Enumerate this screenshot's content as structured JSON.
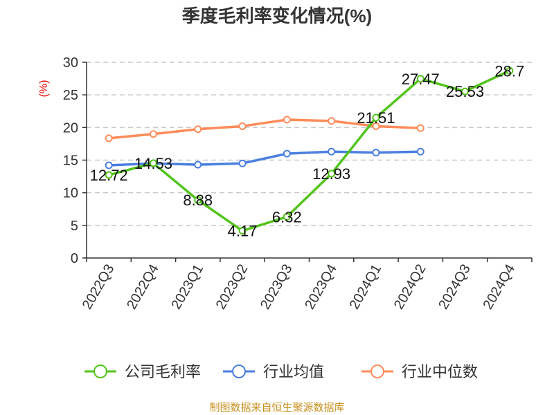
{
  "chart_data": {
    "type": "line",
    "title": "季度毛利率变化情况(%)",
    "ylabel": "(%)",
    "ylim": [
      0,
      30
    ],
    "yticks": [
      0,
      5,
      10,
      15,
      20,
      25,
      30
    ],
    "grid": true,
    "legend_position": "bottom",
    "categories": [
      "2022Q3",
      "2022Q4",
      "2023Q1",
      "2023Q2",
      "2023Q3",
      "2023Q4",
      "2024Q1",
      "2024Q2",
      "2024Q3",
      "2024Q4"
    ],
    "series": [
      {
        "name": "公司毛利率",
        "color": "#52c41a",
        "labels": true,
        "values": [
          12.72,
          14.53,
          8.88,
          4.17,
          6.32,
          12.93,
          21.51,
          27.47,
          25.53,
          28.7
        ]
      },
      {
        "name": "行业均值",
        "color": "#4a7fe0",
        "labels": false,
        "values": [
          14.2,
          14.5,
          14.3,
          14.5,
          16.0,
          16.3,
          16.15,
          16.3,
          null,
          null
        ]
      },
      {
        "name": "行业中位数",
        "color": "#ff8c5a",
        "labels": false,
        "values": [
          18.35,
          19.0,
          19.75,
          20.2,
          21.2,
          21.0,
          20.2,
          19.9,
          null,
          null
        ]
      }
    ]
  },
  "source": "制图数据来自恒生聚源数据库"
}
